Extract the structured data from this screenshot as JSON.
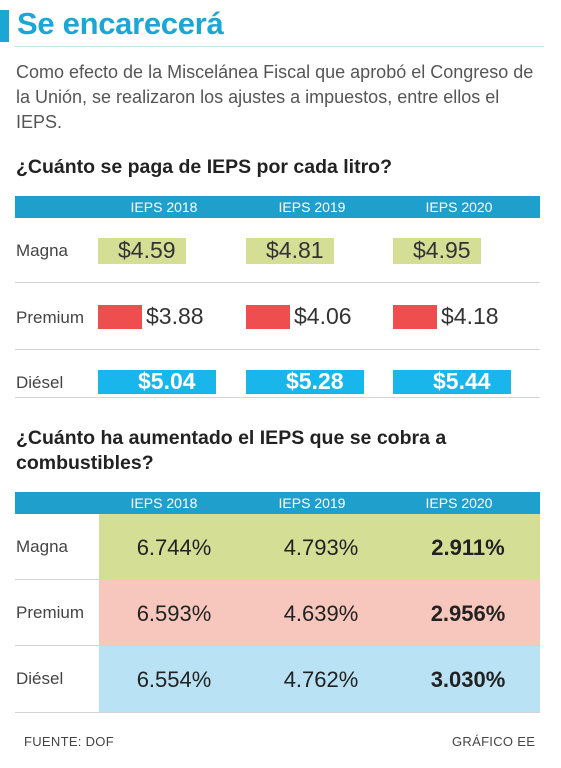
{
  "title": "Se encarecerá",
  "intro": "Como efecto de la Miscelánea Fiscal que aprobó el Congreso de la Unión, se realizaron los ajustes a impuestos, entre ellos el IEPS.",
  "colors": {
    "magna": "#d4df95",
    "premium": "#ef4e4f",
    "diesel": "#19b6ec",
    "accent": "#1ba7d5"
  },
  "chart_data": [
    {
      "type": "table",
      "title": "¿Cuánto se paga de IEPS por cada litro?",
      "columns": [
        "IEPS 2018",
        "IEPS 2019",
        "IEPS 2020"
      ],
      "rows": [
        {
          "name": "Magna",
          "values": [
            4.59,
            4.81,
            4.95
          ],
          "labels": [
            "$4.59",
            "$4.81",
            "$4.95"
          ]
        },
        {
          "name": "Premium",
          "values": [
            3.88,
            4.06,
            4.18
          ],
          "labels": [
            "$3.88",
            "$4.06",
            "$4.18"
          ]
        },
        {
          "name": "Diésel",
          "values": [
            5.04,
            5.28,
            5.44
          ],
          "labels": [
            "$5.04",
            "$5.28",
            "$5.44"
          ]
        }
      ]
    },
    {
      "type": "table",
      "title": "¿Cuánto ha aumentado el IEPS que se cobra a combustibles?",
      "columns": [
        "IEPS 2018",
        "IEPS 2019",
        "IEPS 2020"
      ],
      "rows": [
        {
          "name": "Magna",
          "values": [
            6.744,
            4.793,
            2.911
          ],
          "labels": [
            "6.744%",
            "4.793%",
            "2.911%"
          ]
        },
        {
          "name": "Premium",
          "values": [
            6.593,
            4.639,
            2.956
          ],
          "labels": [
            "6.593%",
            "4.639%",
            "2.956%"
          ]
        },
        {
          "name": "Diésel",
          "values": [
            6.554,
            4.762,
            3.03
          ],
          "labels": [
            "6.554%",
            "4.762%",
            "3.030%"
          ]
        }
      ]
    }
  ],
  "footer": {
    "source": "FUENTE: DOF",
    "credit": "GRÁFICO EE"
  }
}
